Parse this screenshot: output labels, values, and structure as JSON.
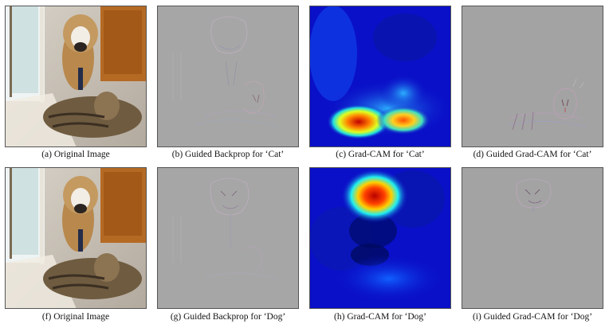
{
  "figure": {
    "captions_top": [
      "(a) Original Image",
      "(b) Guided Backprop for ‘Cat’",
      "(c) Grad-CAM for ‘Cat’",
      "(d) Guided Grad-CAM for ‘Cat’"
    ],
    "captions_bottom": [
      "(f) Original Image",
      "(g) Guided Backprop for ‘Dog’",
      "(h) Grad-CAM for ‘Dog’",
      "(i) Guided Grad-CAM for ‘Dog’"
    ]
  },
  "colors": {
    "heatmap_background": "#0a10c8",
    "heatmap_hot": "#d40000",
    "grey_map": "#a3a3a3"
  }
}
